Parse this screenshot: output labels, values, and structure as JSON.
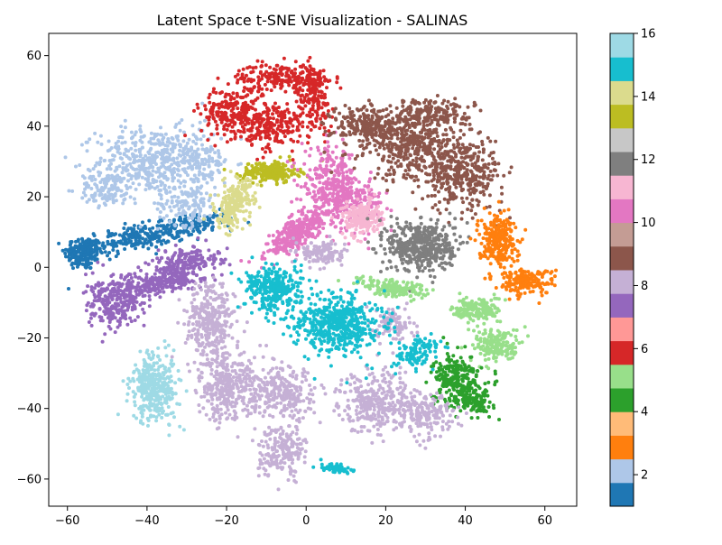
{
  "chart_data": {
    "type": "scatter",
    "title": "Latent Space t-SNE Visualization - SALINAS",
    "xlabel": "",
    "ylabel": "",
    "xlim": [
      -64.7,
      68.0
    ],
    "ylim": [
      -67.7,
      66.3
    ],
    "xticks": [
      -60,
      -40,
      -20,
      0,
      20,
      40,
      60
    ],
    "yticks": [
      -60,
      -40,
      -20,
      0,
      20,
      40,
      60
    ],
    "grid": false,
    "colorbar": {
      "label": "",
      "range": [
        1,
        16
      ],
      "ticks": [
        2,
        4,
        6,
        8,
        10,
        12,
        14,
        16
      ],
      "colormap": "tab20",
      "colors": [
        "#1f77b4",
        "#aec7e8",
        "#ff7f0e",
        "#ffbb78",
        "#2ca02c",
        "#98df8a",
        "#d62728",
        "#ff9896",
        "#9467bd",
        "#c5b0d5",
        "#8c564b",
        "#c49c94",
        "#e377c2",
        "#f7b6d2",
        "#7f7f7f",
        "#c7c7c7",
        "#bcbd22",
        "#dbdb8d",
        "#17becf",
        "#9edae5"
      ]
    },
    "series": [
      {
        "class": 1,
        "color": "#1f77b4",
        "blobs": [
          {
            "center": [
              -56,
              4
            ],
            "spread": [
              4,
              4
            ],
            "angle": 0,
            "points": 180
          },
          {
            "center": [
              -44,
              8
            ],
            "spread": [
              10,
              3
            ],
            "angle": 10,
            "points": 220
          },
          {
            "center": [
              -28,
              12
            ],
            "spread": [
              8,
              2.5
            ],
            "angle": 10,
            "points": 140
          }
        ]
      },
      {
        "class": 2,
        "color": "#aec7e8",
        "blobs": [
          {
            "center": [
              -38,
              30
            ],
            "spread": [
              12,
              8
            ],
            "angle": 0,
            "points": 480
          },
          {
            "center": [
              -50,
              22
            ],
            "spread": [
              6,
              4
            ],
            "angle": 0,
            "points": 120
          },
          {
            "center": [
              -30,
              18
            ],
            "spread": [
              6,
              5
            ],
            "angle": 0,
            "points": 120
          },
          {
            "center": [
              -26,
              30
            ],
            "spread": [
              4,
              8
            ],
            "angle": 0,
            "points": 100
          }
        ]
      },
      {
        "class": 6,
        "color": "#d62728",
        "blobs": [
          {
            "center": [
              -18,
              44
            ],
            "spread": [
              7,
              6
            ],
            "angle": 0,
            "points": 260
          },
          {
            "center": [
              -6,
              54
            ],
            "spread": [
              9,
              3
            ],
            "angle": 0,
            "points": 200
          },
          {
            "center": [
              -8,
              40
            ],
            "spread": [
              6,
              6
            ],
            "angle": 0,
            "points": 200
          },
          {
            "center": [
              2,
              48
            ],
            "spread": [
              4,
              8
            ],
            "angle": 0,
            "points": 160
          }
        ]
      },
      {
        "class": 14,
        "color": "#bcbd22",
        "blobs": [
          {
            "center": [
              -9,
              27
            ],
            "spread": [
              6,
              2.5
            ],
            "angle": 0,
            "points": 220
          }
        ]
      },
      {
        "class": 15,
        "color": "#dbdb8d",
        "blobs": [
          {
            "center": [
              -18,
              18
            ],
            "spread": [
              3.5,
              6
            ],
            "angle": -15,
            "points": 220
          }
        ]
      },
      {
        "class": 10,
        "color": "#e377c2",
        "blobs": [
          {
            "center": [
              -2,
              10
            ],
            "spread": [
              9,
              3
            ],
            "angle": 40,
            "points": 320
          },
          {
            "center": [
              6,
              24
            ],
            "spread": [
              6,
              8
            ],
            "angle": 0,
            "points": 260
          },
          {
            "center": [
              12,
              18
            ],
            "spread": [
              6,
              6
            ],
            "angle": 0,
            "points": 180
          }
        ]
      },
      {
        "class": 11,
        "color": "#8c564b",
        "blobs": [
          {
            "center": [
              16,
              40
            ],
            "spread": [
              8,
              5
            ],
            "angle": 0,
            "points": 260
          },
          {
            "center": [
              28,
              34
            ],
            "spread": [
              10,
              8
            ],
            "angle": 0,
            "points": 420
          },
          {
            "center": [
              40,
              26
            ],
            "spread": [
              8,
              8
            ],
            "angle": 0,
            "points": 320
          },
          {
            "center": [
              32,
              44
            ],
            "spread": [
              8,
              3
            ],
            "angle": 0,
            "points": 160
          }
        ]
      },
      {
        "class": 9,
        "color": "#f7b6d2",
        "blobs": [
          {
            "center": [
              14,
              14
            ],
            "spread": [
              4,
              4
            ],
            "angle": 0,
            "points": 200
          }
        ]
      },
      {
        "class": 12,
        "color": "#7f7f7f",
        "blobs": [
          {
            "center": [
              29,
              6
            ],
            "spread": [
              7,
              6
            ],
            "angle": 0,
            "points": 480
          }
        ]
      },
      {
        "class": 3,
        "color": "#ff7f0e",
        "blobs": [
          {
            "center": [
              48,
              8
            ],
            "spread": [
              4,
              6
            ],
            "angle": 0,
            "points": 260
          },
          {
            "center": [
              55,
              -4
            ],
            "spread": [
              6,
              3
            ],
            "angle": 0,
            "points": 180
          }
        ]
      },
      {
        "class": 5,
        "color": "#98df8a",
        "blobs": [
          {
            "center": [
              22,
              -6
            ],
            "spread": [
              8,
              2
            ],
            "angle": -10,
            "points": 160
          },
          {
            "center": [
              43,
              -12
            ],
            "spread": [
              5,
              3
            ],
            "angle": 0,
            "points": 160
          },
          {
            "center": [
              48,
              -22
            ],
            "spread": [
              5,
              4
            ],
            "angle": 0,
            "points": 180
          }
        ]
      },
      {
        "class": 4,
        "color": "#2ca02c",
        "blobs": [
          {
            "center": [
              38,
              -32
            ],
            "spread": [
              5,
              6
            ],
            "angle": 0,
            "points": 260
          },
          {
            "center": [
              42,
              -38
            ],
            "spread": [
              4,
              3
            ],
            "angle": 0,
            "points": 100
          }
        ]
      },
      {
        "class": 8,
        "color": "#9467bd",
        "blobs": [
          {
            "center": [
              -48,
              -10
            ],
            "spread": [
              6,
              6
            ],
            "angle": 0,
            "points": 260
          },
          {
            "center": [
              -36,
              -4
            ],
            "spread": [
              9,
              3
            ],
            "angle": 15,
            "points": 260
          },
          {
            "center": [
              -30,
              2
            ],
            "spread": [
              7,
              3
            ],
            "angle": 10,
            "points": 160
          }
        ]
      },
      {
        "class": 16,
        "color": "#9edae5",
        "blobs": [
          {
            "center": [
              -38,
              -34
            ],
            "spread": [
              5,
              8
            ],
            "angle": 0,
            "points": 360
          }
        ]
      },
      {
        "class": 8.5,
        "color": "#c5b0d5",
        "blobs": [
          {
            "center": [
              -24,
              -16
            ],
            "spread": [
              5,
              10
            ],
            "angle": 0,
            "points": 320
          },
          {
            "center": [
              -20,
              -34
            ],
            "spread": [
              6,
              8
            ],
            "angle": 0,
            "points": 320
          },
          {
            "center": [
              -6,
              -36
            ],
            "spread": [
              8,
              6
            ],
            "angle": 0,
            "points": 280
          },
          {
            "center": [
              -6,
              -52
            ],
            "spread": [
              5,
              6
            ],
            "angle": 0,
            "points": 200
          },
          {
            "center": [
              18,
              -38
            ],
            "spread": [
              8,
              7
            ],
            "angle": 0,
            "points": 320
          },
          {
            "center": [
              30,
              -42
            ],
            "spread": [
              6,
              5
            ],
            "angle": 0,
            "points": 180
          },
          {
            "center": [
              4,
              4
            ],
            "spread": [
              5,
              3
            ],
            "angle": 0,
            "points": 120
          },
          {
            "center": [
              22,
              -16
            ],
            "spread": [
              4,
              4
            ],
            "angle": 0,
            "points": 100
          }
        ]
      },
      {
        "class": 13,
        "color": "#17becf",
        "blobs": [
          {
            "center": [
              -8,
              -6
            ],
            "spread": [
              6,
              5
            ],
            "angle": 0,
            "points": 320
          },
          {
            "center": [
              8,
              -16
            ],
            "spread": [
              9,
              7
            ],
            "angle": 0,
            "points": 520
          },
          {
            "center": [
              28,
              -24
            ],
            "spread": [
              5,
              3
            ],
            "angle": 25,
            "points": 120
          },
          {
            "center": [
              8,
              -57
            ],
            "spread": [
              4,
              1
            ],
            "angle": -10,
            "points": 60
          }
        ]
      }
    ]
  }
}
